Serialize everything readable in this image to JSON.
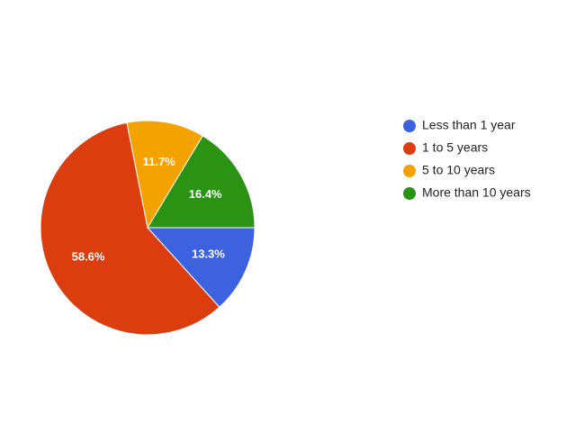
{
  "chart_data": {
    "type": "pie",
    "categories": [
      "Less than 1 year",
      "1 to 5 years",
      "5 to 10 years",
      "More than 10 years"
    ],
    "values": [
      13.3,
      58.6,
      11.7,
      16.4
    ],
    "value_labels": [
      "13.3%",
      "58.6%",
      "11.7%",
      "16.4%"
    ],
    "colors": [
      "#3d62e0",
      "#dc3d0f",
      "#f4a200",
      "#2b9313"
    ],
    "legend": "right"
  }
}
